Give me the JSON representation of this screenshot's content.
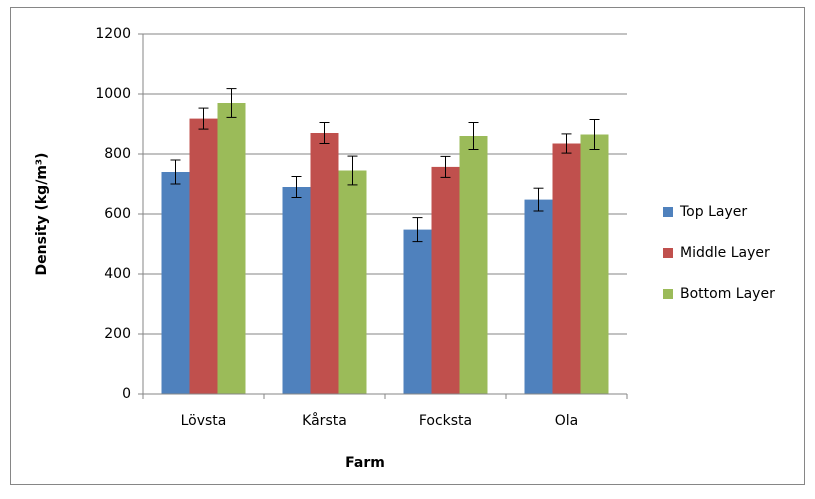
{
  "chart_data": {
    "type": "bar",
    "x_label": "Farm",
    "y_label": "Density (kg/m³)",
    "categories": [
      "Lövsta",
      "Kårsta",
      "Focksta",
      "Ola"
    ],
    "series": [
      {
        "name": "Top Layer",
        "color": "#4f81bd",
        "values": [
          740,
          690,
          548,
          648
        ],
        "errors": [
          40,
          35,
          40,
          38
        ]
      },
      {
        "name": "Middle Layer",
        "color": "#c0504d",
        "values": [
          918,
          870,
          757,
          835
        ],
        "errors": [
          35,
          35,
          35,
          32
        ]
      },
      {
        "name": "Bottom Layer",
        "color": "#9bbb59",
        "values": [
          970,
          745,
          860,
          865
        ],
        "errors": [
          48,
          48,
          45,
          50
        ]
      }
    ],
    "ylim": [
      0,
      1200
    ],
    "yticks": [
      0,
      200,
      400,
      600,
      800,
      1000,
      1200
    ],
    "grid": true,
    "legend": "right"
  }
}
